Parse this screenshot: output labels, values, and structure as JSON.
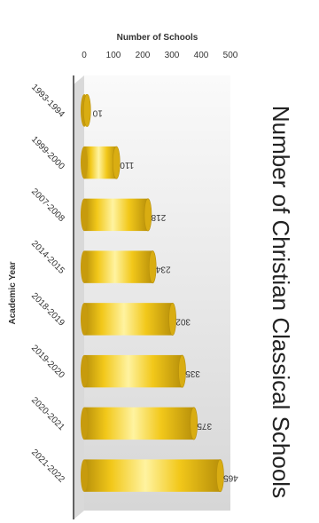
{
  "chart_data": {
    "type": "bar",
    "orientation": "horizontal",
    "title": "Number of Christian Classical Schools",
    "xlabel": "Academic Year",
    "ylabel": "Number of Schools",
    "categories": [
      "1993-1994",
      "1999-2000",
      "2007-2008",
      "2014-2015",
      "2018-2019",
      "2019-2020",
      "2020-2021",
      "2021-2022"
    ],
    "values": [
      10,
      110,
      218,
      234,
      302,
      335,
      375,
      465
    ],
    "data_labels": [
      "10",
      "110",
      "218",
      "234",
      "302",
      "335",
      "375",
      "465"
    ],
    "ylim": [
      0,
      500
    ],
    "ticks": [
      0,
      100,
      200,
      300,
      400,
      500
    ],
    "tick_labels": [
      "0",
      "100",
      "200",
      "300",
      "400",
      "500"
    ],
    "grid": false,
    "legend": "none",
    "colors": {
      "bar_light": "#fff3a0",
      "bar_main": "#f2c81a",
      "bar_dark": "#b8900a",
      "bar_top": "#d9ad12",
      "background_light": "#fafafa",
      "background_dark": "#d6d6d6"
    }
  }
}
